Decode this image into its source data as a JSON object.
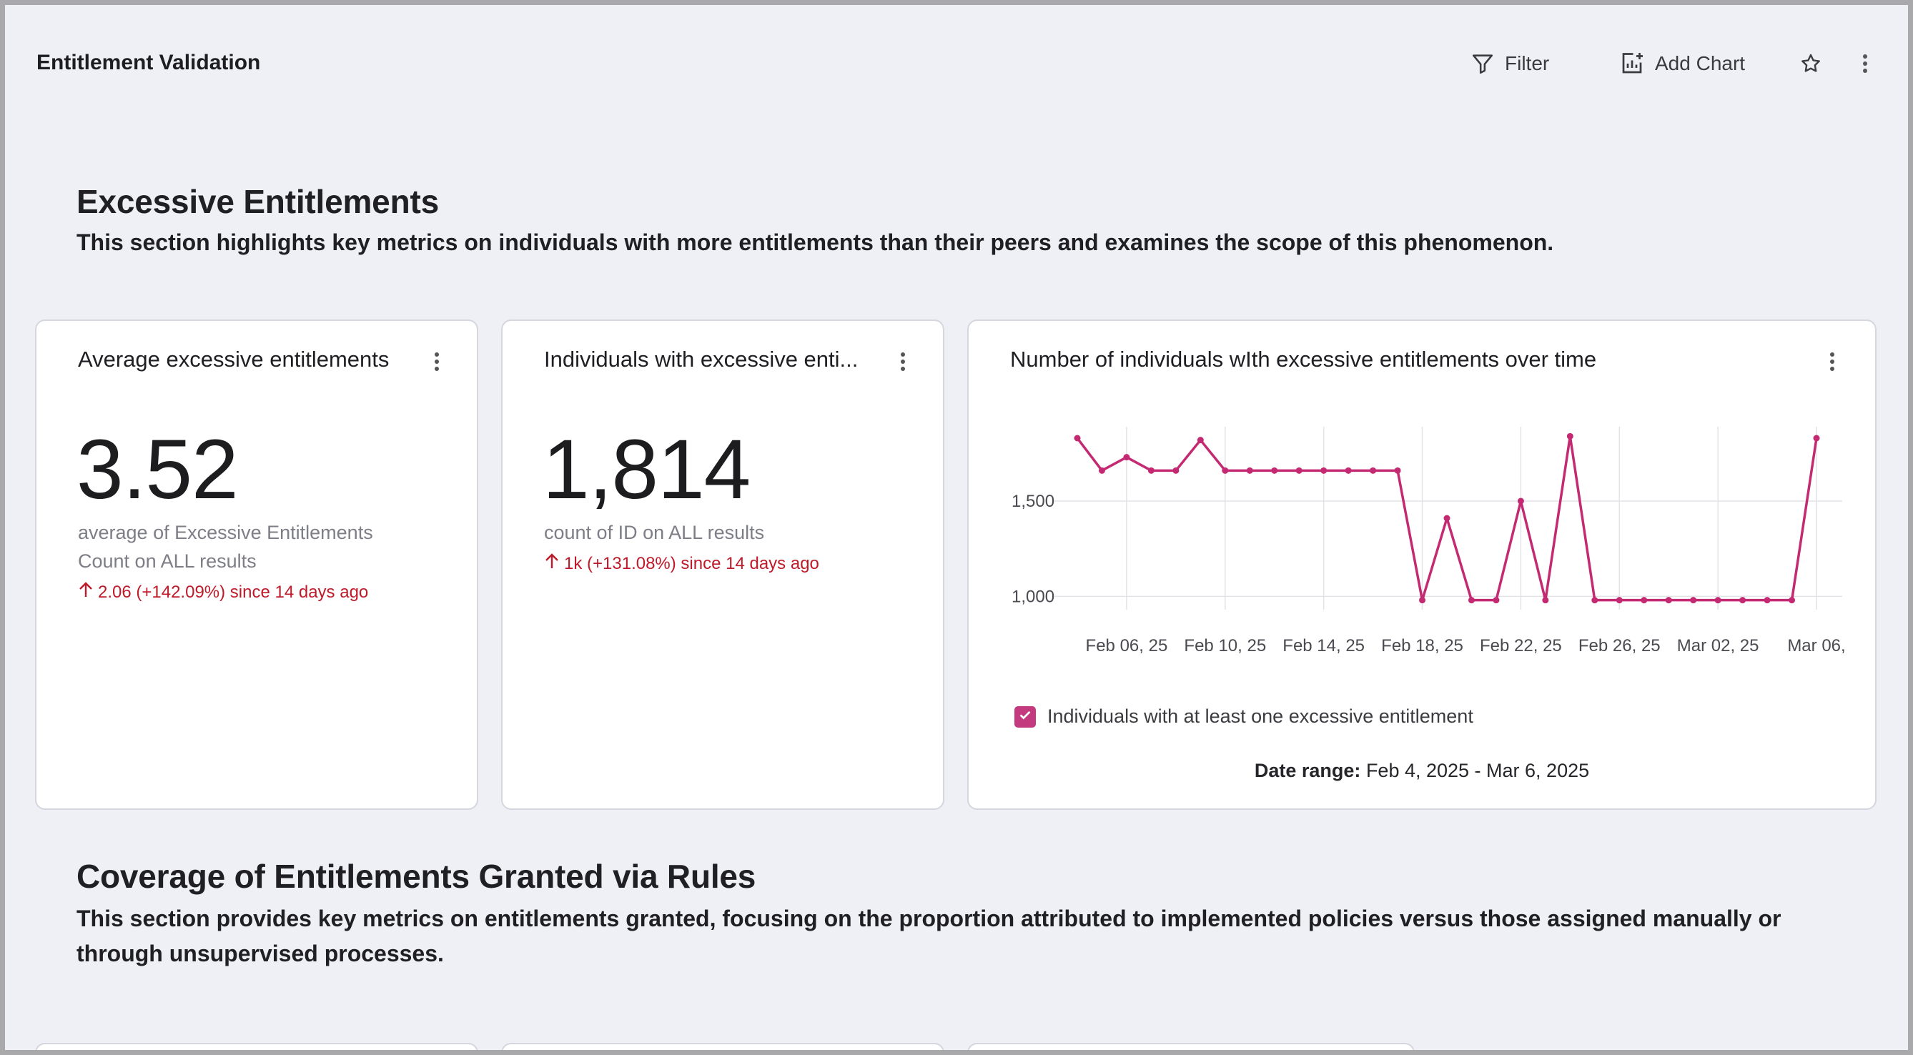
{
  "header": {
    "title": "Entitlement Validation",
    "filter_label": "Filter",
    "add_chart_label": "Add Chart"
  },
  "sections": [
    {
      "title": "Excessive Entitlements",
      "description": "This section highlights key metrics on individuals with more entitlements than their peers and examines the scope of this phenomenon."
    },
    {
      "title": "Coverage of Entitlements Granted via Rules",
      "description": "This section provides key metrics on entitlements granted, focusing on the proportion attributed to implemented policies versus those assigned manually or through unsupervised processes."
    }
  ],
  "cards": {
    "avg": {
      "title": "Average excessive entitlements",
      "value": "3.52",
      "subtitle_line1": "average of Excessive Entitlements",
      "subtitle_line2": "Count on ALL results",
      "delta": "2.06 (+142.09%) since 14 days ago"
    },
    "individuals": {
      "title": "Individuals with excessive enti...",
      "value": "1,814",
      "subtitle": "count of ID on ALL results",
      "delta": "1k (+131.08%) since 14 days ago"
    },
    "trend": {
      "title": "Number of individuals wIth excessive entitlements over time",
      "legend_label": "Individuals with at least one excessive entitlement",
      "date_range_label": "Date range:",
      "date_range_value": "Feb 4, 2025 - Mar 6, 2025"
    }
  },
  "colors": {
    "accent": "#c42a72",
    "delta_red": "#bf1a2a",
    "background": "#eff0f5"
  },
  "chart_data": {
    "type": "line",
    "title": "Number of individuals wIth excessive entitlements over time",
    "series": [
      {
        "name": "Individuals with at least one excessive entitlement",
        "values": [
          1830,
          1660,
          1730,
          1660,
          1660,
          1820,
          1660,
          1660,
          1660,
          1660,
          1660,
          1660,
          1660,
          1660,
          980,
          1410,
          980,
          980,
          1500,
          980,
          1840,
          980,
          980,
          980,
          980,
          980,
          980,
          980,
          980,
          980,
          1830
        ]
      }
    ],
    "x_labels": [
      "Feb 06, 25",
      "Feb 10, 25",
      "Feb 14, 25",
      "Feb 18, 25",
      "Feb 22, 25",
      "Feb 26, 25",
      "Mar 02, 25",
      "Mar 06,"
    ],
    "x_label_indices": [
      2,
      6,
      10,
      14,
      18,
      22,
      26,
      30
    ],
    "y_ticks": [
      {
        "value": 1500,
        "label": "1,500"
      },
      {
        "value": 1000,
        "label": "1,000"
      }
    ],
    "ylim": [
      870,
      1920
    ],
    "grid": true
  }
}
